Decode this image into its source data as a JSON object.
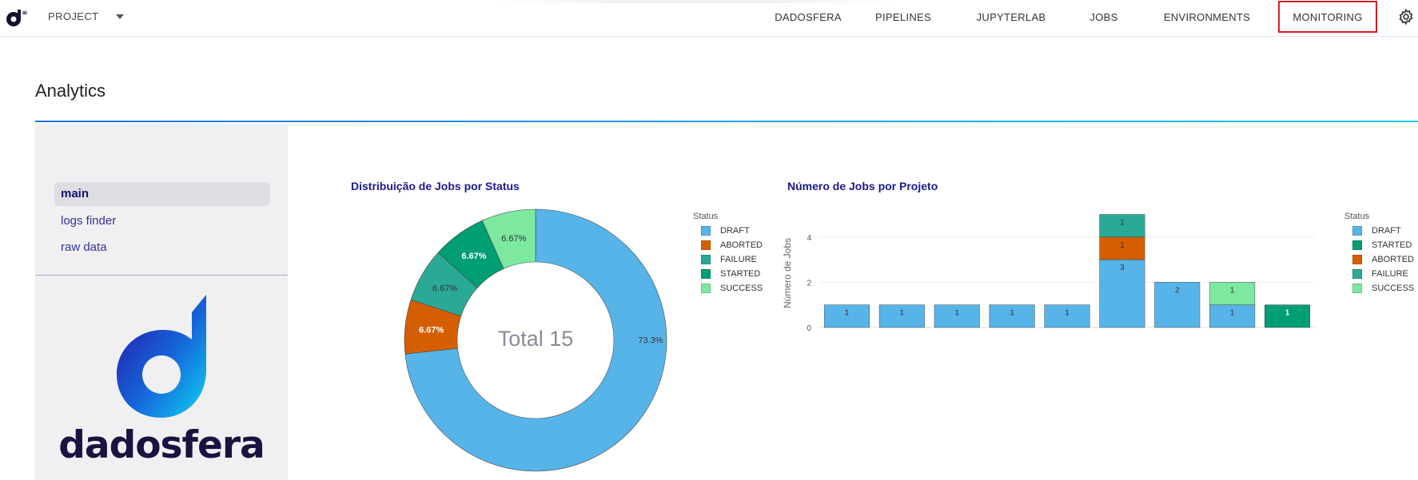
{
  "topbar": {
    "project_label": "PROJECT",
    "nav": [
      {
        "key": "dadosfera",
        "label": "DADOSFERA"
      },
      {
        "key": "pipelines",
        "label": "PIPELINES"
      },
      {
        "key": "jupyterlab",
        "label": "JUPYTERLAB"
      },
      {
        "key": "jobs",
        "label": "JOBS"
      },
      {
        "key": "environments",
        "label": "ENVIRONMENTS"
      },
      {
        "key": "monitoring",
        "label": "MONITORING",
        "active": true
      }
    ]
  },
  "page": {
    "title": "Analytics"
  },
  "sidebar": {
    "items": [
      {
        "label": "main",
        "selected": true
      },
      {
        "label": "logs finder",
        "selected": false
      },
      {
        "label": "raw data",
        "selected": false
      }
    ],
    "brand": "dadosfera"
  },
  "colors": {
    "DRAFT": "#56b4e9",
    "ABORTED": "#d55e00",
    "FAILURE": "#2aa996",
    "STARTED": "#009e73",
    "SUCCESS": "#7ce8a0",
    "accent_red": "#d31f26"
  },
  "chart_data": [
    {
      "type": "pie",
      "title": "Distribuição de Jobs por Status",
      "center_text": "Total 15",
      "legend_title": "Status",
      "legend_position": "right",
      "labels": [
        "DRAFT",
        "ABORTED",
        "FAILURE",
        "STARTED",
        "SUCCESS"
      ],
      "values": [
        11,
        1,
        1,
        1,
        1
      ],
      "percent_labels": [
        "73.3%",
        "6.67%",
        "6.67%",
        "6.67%",
        "6.67%"
      ]
    },
    {
      "type": "bar",
      "title": "Número de Jobs por Projeto",
      "ylabel": "Número de Jobs",
      "xlabel": "",
      "ylim": [
        0,
        5
      ],
      "yticks": [
        0,
        2,
        4
      ],
      "stacked": true,
      "legend_title": "Status",
      "legend_position": "right",
      "legend": [
        "DRAFT",
        "STARTED",
        "ABORTED",
        "FAILURE",
        "SUCCESS"
      ],
      "categories": [
        "",
        "",
        "",
        "",
        "",
        "",
        "",
        "",
        ""
      ],
      "series": [
        {
          "name": "DRAFT",
          "values": [
            1,
            1,
            1,
            1,
            1,
            3,
            2,
            1,
            0
          ]
        },
        {
          "name": "STARTED",
          "values": [
            0,
            0,
            0,
            0,
            0,
            0,
            0,
            0,
            1
          ]
        },
        {
          "name": "ABORTED",
          "values": [
            0,
            0,
            0,
            0,
            0,
            1,
            0,
            0,
            0
          ]
        },
        {
          "name": "FAILURE",
          "values": [
            0,
            0,
            0,
            0,
            0,
            1,
            0,
            0,
            0
          ]
        },
        {
          "name": "SUCCESS",
          "values": [
            0,
            0,
            0,
            0,
            0,
            0,
            0,
            1,
            0
          ]
        }
      ]
    }
  ]
}
